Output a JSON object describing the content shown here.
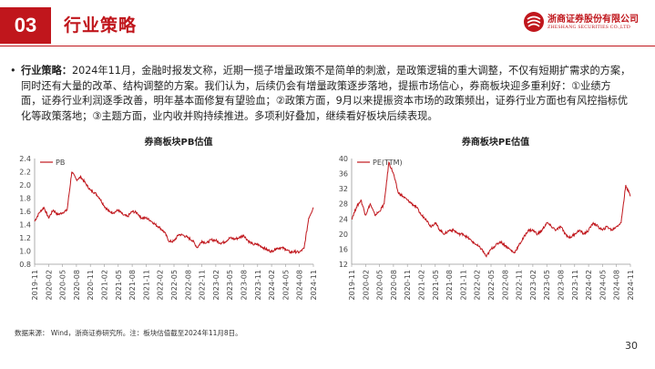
{
  "header": {
    "section_number": "03",
    "section_title": "行业策略",
    "logo_cn": "浙商证券股份有限公司",
    "logo_en": "ZHESHANG SECURITIES CO.,LTD",
    "accent": "#c0161c"
  },
  "body": {
    "label": "行业策略：",
    "text": "2024年11月，金融时报发文称，近期一揽子增量政策不是简单的刺激，是政策逻辑的重大调整，不仅有短期扩需求的方案，同时还有大量的改革、结构调整的方案。我们认为，后续仍会有增量政策逐步落地，提振市场信心，券商板块迎多重利好：①业绩方面，证券行业利润逐季改善，明年基本面修复有望验血；②政策方面，9月以来提振资本市场的政策频出，证券行业方面也有风控指标优化等政策落地；③主题方面，业内收并购持续推进。多项利好叠加，继续看好板块后续表现。"
  },
  "chart_data": [
    {
      "type": "line",
      "title": "券商板块PB估值",
      "series": [
        {
          "name": "PB",
          "color": "#c0161c",
          "anchors": [
            [
              "2019-11",
              1.45
            ],
            [
              "2019-12",
              1.58
            ],
            [
              "2020-01",
              1.66
            ],
            [
              "2020-02",
              1.5
            ],
            [
              "2020-03",
              1.62
            ],
            [
              "2020-04",
              1.55
            ],
            [
              "2020-05",
              1.58
            ],
            [
              "2020-06",
              1.62
            ],
            [
              "2020-07",
              2.2
            ],
            [
              "2020-08",
              2.08
            ],
            [
              "2020-09",
              2.12
            ],
            [
              "2020-10",
              2.02
            ],
            [
              "2020-11",
              1.92
            ],
            [
              "2020-12",
              1.88
            ],
            [
              "2021-01",
              1.8
            ],
            [
              "2021-02",
              1.68
            ],
            [
              "2021-03",
              1.6
            ],
            [
              "2021-04",
              1.58
            ],
            [
              "2021-05",
              1.62
            ],
            [
              "2021-06",
              1.55
            ],
            [
              "2021-07",
              1.52
            ],
            [
              "2021-08",
              1.6
            ],
            [
              "2021-09",
              1.58
            ],
            [
              "2021-10",
              1.5
            ],
            [
              "2021-11",
              1.5
            ],
            [
              "2021-12",
              1.46
            ],
            [
              "2022-01",
              1.4
            ],
            [
              "2022-02",
              1.35
            ],
            [
              "2022-03",
              1.28
            ],
            [
              "2022-04",
              1.14
            ],
            [
              "2022-05",
              1.15
            ],
            [
              "2022-06",
              1.25
            ],
            [
              "2022-07",
              1.24
            ],
            [
              "2022-08",
              1.2
            ],
            [
              "2022-09",
              1.16
            ],
            [
              "2022-10",
              1.05
            ],
            [
              "2022-11",
              1.15
            ],
            [
              "2022-12",
              1.12
            ],
            [
              "2023-01",
              1.17
            ],
            [
              "2023-02",
              1.16
            ],
            [
              "2023-03",
              1.12
            ],
            [
              "2023-04",
              1.14
            ],
            [
              "2023-05",
              1.2
            ],
            [
              "2023-06",
              1.18
            ],
            [
              "2023-07",
              1.2
            ],
            [
              "2023-08",
              1.24
            ],
            [
              "2023-09",
              1.15
            ],
            [
              "2023-10",
              1.1
            ],
            [
              "2023-11",
              1.1
            ],
            [
              "2023-12",
              1.06
            ],
            [
              "2024-01",
              1.02
            ],
            [
              "2024-02",
              0.99
            ],
            [
              "2024-03",
              1.04
            ],
            [
              "2024-04",
              1.05
            ],
            [
              "2024-05",
              1.03
            ],
            [
              "2024-06",
              0.98
            ],
            [
              "2024-07",
              0.99
            ],
            [
              "2024-08",
              0.98
            ],
            [
              "2024-09",
              1.04
            ],
            [
              "2024-10",
              1.5
            ],
            [
              "2024-11",
              1.66
            ]
          ]
        }
      ],
      "ylim": [
        0.8,
        2.4
      ],
      "yticks": [
        "0.8",
        "1.0",
        "1.2",
        "1.4",
        "1.6",
        "1.8",
        "2.0",
        "2.2",
        "2.4"
      ],
      "xticks": [
        "2019-11",
        "2020-02",
        "2020-05",
        "2020-08",
        "2020-11",
        "2021-02",
        "2021-05",
        "2021-08",
        "2021-11",
        "2022-02",
        "2022-05",
        "2022-08",
        "2022-11",
        "2023-02",
        "2023-05",
        "2023-08",
        "2023-11",
        "2024-02",
        "2024-05",
        "2024-08",
        "2024-11"
      ],
      "legend": "top-left"
    },
    {
      "type": "line",
      "title": "券商板块PE估值",
      "series": [
        {
          "name": "PE(TTM)",
          "color": "#c0161c",
          "anchors": [
            [
              "2019-11",
              24
            ],
            [
              "2019-12",
              27
            ],
            [
              "2020-01",
              29
            ],
            [
              "2020-02",
              25
            ],
            [
              "2020-03",
              28
            ],
            [
              "2020-04",
              25
            ],
            [
              "2020-05",
              26
            ],
            [
              "2020-06",
              28
            ],
            [
              "2020-07",
              39
            ],
            [
              "2020-08",
              36
            ],
            [
              "2020-09",
              31
            ],
            [
              "2020-10",
              30
            ],
            [
              "2020-11",
              29
            ],
            [
              "2020-12",
              28
            ],
            [
              "2021-01",
              27
            ],
            [
              "2021-02",
              25
            ],
            [
              "2021-03",
              24
            ],
            [
              "2021-04",
              22
            ],
            [
              "2021-05",
              23
            ],
            [
              "2021-06",
              21
            ],
            [
              "2021-07",
              20
            ],
            [
              "2021-08",
              21
            ],
            [
              "2021-09",
              21
            ],
            [
              "2021-10",
              20
            ],
            [
              "2021-11",
              20
            ],
            [
              "2021-12",
              19
            ],
            [
              "2022-01",
              18
            ],
            [
              "2022-02",
              17
            ],
            [
              "2022-03",
              16
            ],
            [
              "2022-04",
              14
            ],
            [
              "2022-05",
              16
            ],
            [
              "2022-06",
              17
            ],
            [
              "2022-07",
              18
            ],
            [
              "2022-08",
              17
            ],
            [
              "2022-09",
              16
            ],
            [
              "2022-10",
              15
            ],
            [
              "2022-11",
              17
            ],
            [
              "2022-12",
              19
            ],
            [
              "2023-01",
              21
            ],
            [
              "2023-02",
              21
            ],
            [
              "2023-03",
              20
            ],
            [
              "2023-04",
              21
            ],
            [
              "2023-05",
              23
            ],
            [
              "2023-06",
              22
            ],
            [
              "2023-07",
              21
            ],
            [
              "2023-08",
              22
            ],
            [
              "2023-09",
              20
            ],
            [
              "2023-10",
              19
            ],
            [
              "2023-11",
              20
            ],
            [
              "2023-12",
              21
            ],
            [
              "2024-01",
              20
            ],
            [
              "2024-02",
              21
            ],
            [
              "2024-03",
              23
            ],
            [
              "2024-04",
              22
            ],
            [
              "2024-05",
              21
            ],
            [
              "2024-06",
              22
            ],
            [
              "2024-07",
              21
            ],
            [
              "2024-08",
              22
            ],
            [
              "2024-09",
              23
            ],
            [
              "2024-10",
              33
            ],
            [
              "2024-11",
              30
            ]
          ]
        }
      ],
      "ylim": [
        12,
        40
      ],
      "yticks": [
        "12",
        "16",
        "20",
        "24",
        "28",
        "32",
        "36",
        "40"
      ],
      "xticks": [
        "2019-11",
        "2020-02",
        "2020-05",
        "2020-08",
        "2020-11",
        "2021-02",
        "2021-05",
        "2021-08",
        "2021-11",
        "2022-02",
        "2022-05",
        "2022-08",
        "2022-11",
        "2023-02",
        "2023-05",
        "2023-08",
        "2023-11",
        "2024-02",
        "2024-05",
        "2024-08",
        "2024-11"
      ],
      "legend": "top-left"
    }
  ],
  "footer": {
    "source": "数据来源： Wind，浙商证券研究所。注：板块估值截至2024年11月8日。",
    "page": "30"
  }
}
